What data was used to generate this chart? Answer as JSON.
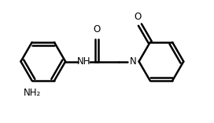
{
  "background_color": "#ffffff",
  "line_color": "#000000",
  "line_width": 1.8,
  "text_color": "#000000",
  "label_NH": "NH",
  "label_N": "N",
  "label_O1": "O",
  "label_O2": "O",
  "label_NH2": "NH₂",
  "font_size": 8.5,
  "fig_width": 2.72,
  "fig_height": 1.57,
  "dpi": 100
}
